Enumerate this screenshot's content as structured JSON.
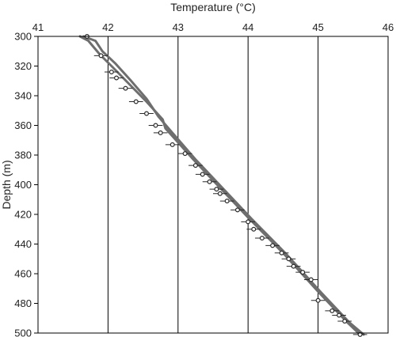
{
  "chart_data": {
    "type": "scatter",
    "title": "",
    "xlabel": "Temperature (°C)",
    "ylabel": "Depth (m)",
    "x_axis_position": "top",
    "y_axis_inverted": true,
    "xlim": [
      41,
      46
    ],
    "ylim": [
      300,
      500
    ],
    "x_ticks": [
      41,
      42,
      43,
      44,
      45,
      46
    ],
    "y_ticks": [
      300,
      320,
      340,
      360,
      380,
      400,
      420,
      440,
      460,
      480,
      500
    ],
    "grid": {
      "vertical": true,
      "horizontal": false
    },
    "colors": {
      "curve": "#6e6e6e",
      "points": "#2a2a2a",
      "axis": "#000000",
      "grid": "#000000"
    },
    "series": [
      {
        "kind": "line",
        "x": [
          41.6,
          41.72,
          41.88,
          42.05,
          42.3,
          42.55,
          42.78,
          42.82,
          43.2,
          43.6,
          44.0,
          44.5,
          45.0,
          45.4,
          45.6
        ],
        "y": [
          300,
          303,
          312,
          320,
          332,
          344,
          356,
          362,
          382,
          402,
          422,
          446,
          472,
          492,
          501
        ]
      },
      {
        "kind": "line",
        "x": [
          41.65,
          41.82,
          41.92,
          42.1,
          42.33,
          42.55,
          42.72,
          42.9,
          43.25,
          43.65,
          44.05,
          44.55,
          45.05,
          45.45,
          45.65
        ],
        "y": [
          300,
          303,
          310,
          318,
          330,
          342,
          354,
          364,
          383,
          403,
          423,
          447,
          473,
          493,
          501
        ]
      },
      {
        "kind": "points",
        "x": [
          41.7,
          41.9,
          42.05,
          42.12,
          42.25,
          42.4,
          42.55,
          42.68,
          42.75,
          42.92,
          43.1,
          43.25,
          43.35,
          43.45,
          43.55,
          43.6,
          43.7,
          43.85,
          44.0,
          44.08,
          44.2,
          44.35,
          44.48,
          44.58,
          44.65,
          44.78,
          44.9,
          45.0,
          45.2,
          45.3,
          45.38,
          45.6
        ],
        "y": [
          300,
          313,
          324,
          328,
          335,
          344,
          352,
          360,
          365,
          373,
          379,
          387,
          393,
          398,
          403,
          406,
          411,
          417,
          425,
          430,
          436,
          441,
          446,
          450,
          455,
          459,
          464,
          478,
          485,
          488,
          492,
          501
        ],
        "error": 0.1
      }
    ]
  }
}
